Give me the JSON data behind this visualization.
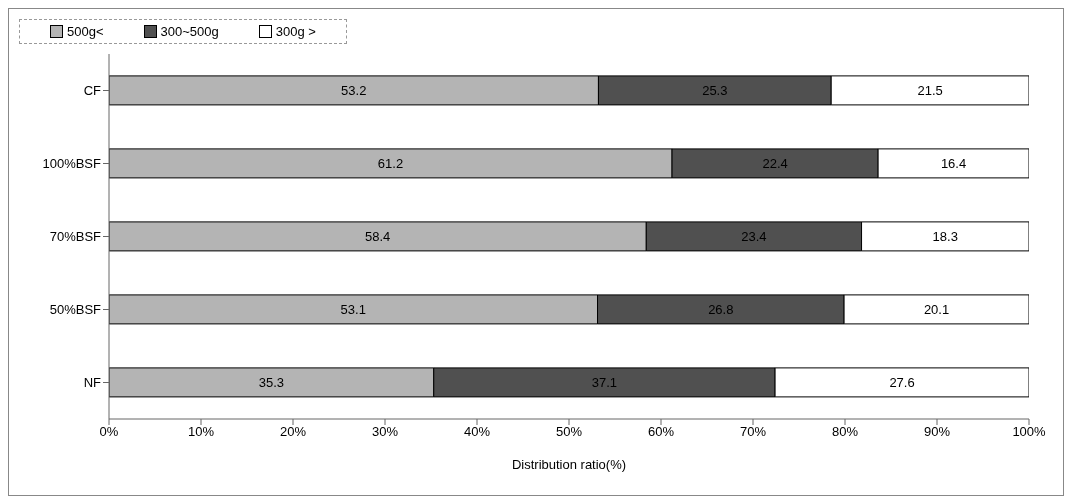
{
  "chart_data": {
    "type": "bar",
    "orientation": "horizontal",
    "stacked": true,
    "xlabel": "Distribution ratio(%)",
    "categories": [
      "CF",
      "100%BSF",
      "70%BSF",
      "50%BSF",
      "NF"
    ],
    "series": [
      {
        "name": "500g<",
        "color": "#b4b4b4",
        "values": [
          53.2,
          61.2,
          58.4,
          53.1,
          35.3
        ]
      },
      {
        "name": "300~500g",
        "color": "#505050",
        "values": [
          25.3,
          22.4,
          23.4,
          26.8,
          37.1
        ]
      },
      {
        "name": "300g >",
        "color": "#ffffff",
        "values": [
          21.5,
          16.4,
          18.3,
          20.1,
          27.6
        ]
      }
    ],
    "xlim": [
      0,
      100
    ],
    "xticks": [
      {
        "value": 0,
        "label": "0%"
      },
      {
        "value": 10,
        "label": "10%"
      },
      {
        "value": 20,
        "label": "20%"
      },
      {
        "value": 30,
        "label": "30%"
      },
      {
        "value": 40,
        "label": "40%"
      },
      {
        "value": 50,
        "label": "50%"
      },
      {
        "value": 60,
        "label": "60%"
      },
      {
        "value": 70,
        "label": "70%"
      },
      {
        "value": 80,
        "label": "80%"
      },
      {
        "value": 90,
        "label": "90%"
      },
      {
        "value": 100,
        "label": "100%"
      }
    ],
    "legend": "top",
    "data_labels": true,
    "grid": false
  }
}
